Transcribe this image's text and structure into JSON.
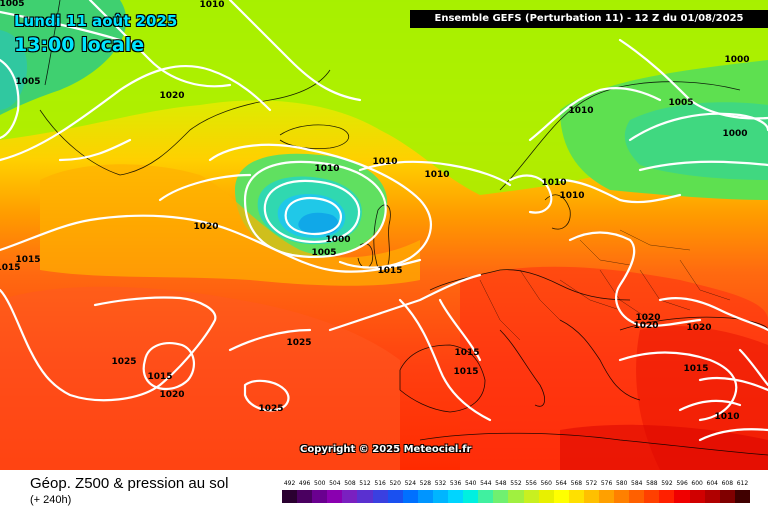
{
  "header": {
    "date": "Lundi 11 août 2025",
    "local_time": "13:00 locale",
    "run_info": "Ensemble GEFS  (Perturbation 11)  -  12 Z du 01/08/2025"
  },
  "copyright": "Copyright © 2025 Meteociel.fr",
  "footer": {
    "title": "Géop. Z500 & pression au sol",
    "lead_time": "(+ 240h)"
  },
  "legend": {
    "values": [
      "492",
      "496",
      "500",
      "504",
      "508",
      "512",
      "516",
      "520",
      "524",
      "528",
      "532",
      "536",
      "540",
      "544",
      "548",
      "552",
      "556",
      "560",
      "564",
      "568",
      "572",
      "576",
      "580",
      "584",
      "588",
      "592",
      "596",
      "600",
      "604",
      "608",
      "612"
    ],
    "colors": [
      "#2a0030",
      "#4a0060",
      "#6a0090",
      "#8a00b0",
      "#7a20c0",
      "#5a30d0",
      "#3a40e0",
      "#1a50f0",
      "#0070ff",
      "#0095ff",
      "#00b5ff",
      "#00d5ff",
      "#00f0e0",
      "#40f0a0",
      "#70f070",
      "#a0f040",
      "#c8f020",
      "#e8f000",
      "#ffff00",
      "#ffe000",
      "#ffc000",
      "#ffa000",
      "#ff8000",
      "#ff6000",
      "#ff4000",
      "#ff2000",
      "#f00000",
      "#d00000",
      "#b00000",
      "#800000",
      "#400000"
    ]
  },
  "isobar_labels": [
    {
      "text": "1005",
      "name": "isobar-label-1005-nw-top"
    },
    {
      "text": "1010",
      "name": "isobar-label-1010-top"
    },
    {
      "text": "1005",
      "name": "isobar-label-1005-greenland"
    },
    {
      "text": "1020",
      "name": "isobar-label-1020-greenland"
    },
    {
      "text": "1010",
      "name": "isobar-label-1010-iceland"
    },
    {
      "text": "1010",
      "name": "isobar-label-1010-northsea-a"
    },
    {
      "text": "1010",
      "name": "isobar-label-1010-northsea-b"
    },
    {
      "text": "1000",
      "name": "isobar-label-1000-low-center"
    },
    {
      "text": "1005",
      "name": "isobar-label-1005-low"
    },
    {
      "text": "1020",
      "name": "isobar-label-1020-atlantic"
    },
    {
      "text": "1015",
      "name": "isobar-label-1015-west-edge"
    },
    {
      "text": "1015",
      "name": "isobar-label-1015-west"
    },
    {
      "text": "1015",
      "name": "isobar-label-1015-ireland"
    },
    {
      "text": "1010",
      "name": "isobar-label-1010-norway"
    },
    {
      "text": "1010",
      "name": "isobar-label-1010-denmark"
    },
    {
      "text": "1010",
      "name": "isobar-label-1010-baltic"
    },
    {
      "text": "1005",
      "name": "isobar-label-1005-scandinavia"
    },
    {
      "text": "1000",
      "name": "isobar-label-1000-ne-top"
    },
    {
      "text": "1000",
      "name": "isobar-label-1000-ne"
    },
    {
      "text": "1025",
      "name": "isobar-label-1025-azores"
    },
    {
      "text": "1025",
      "name": "isobar-label-1025-mid-atlantic"
    },
    {
      "text": "1015",
      "name": "isobar-label-1015-small-low"
    },
    {
      "text": "1020",
      "name": "isobar-label-1020-small-low"
    },
    {
      "text": "1025",
      "name": "isobar-label-1025-south"
    },
    {
      "text": "1015",
      "name": "isobar-label-1015-iberia-north"
    },
    {
      "text": "1015",
      "name": "isobar-label-1015-iberia-south"
    },
    {
      "text": "1020",
      "name": "isobar-label-1020-balkans-a"
    },
    {
      "text": "1020",
      "name": "isobar-label-1020-balkans-b"
    },
    {
      "text": "1020",
      "name": "isobar-label-1020-east"
    },
    {
      "text": "1015",
      "name": "isobar-label-1015-turkey"
    },
    {
      "text": "1010",
      "name": "isobar-label-1010-southeast"
    }
  ]
}
